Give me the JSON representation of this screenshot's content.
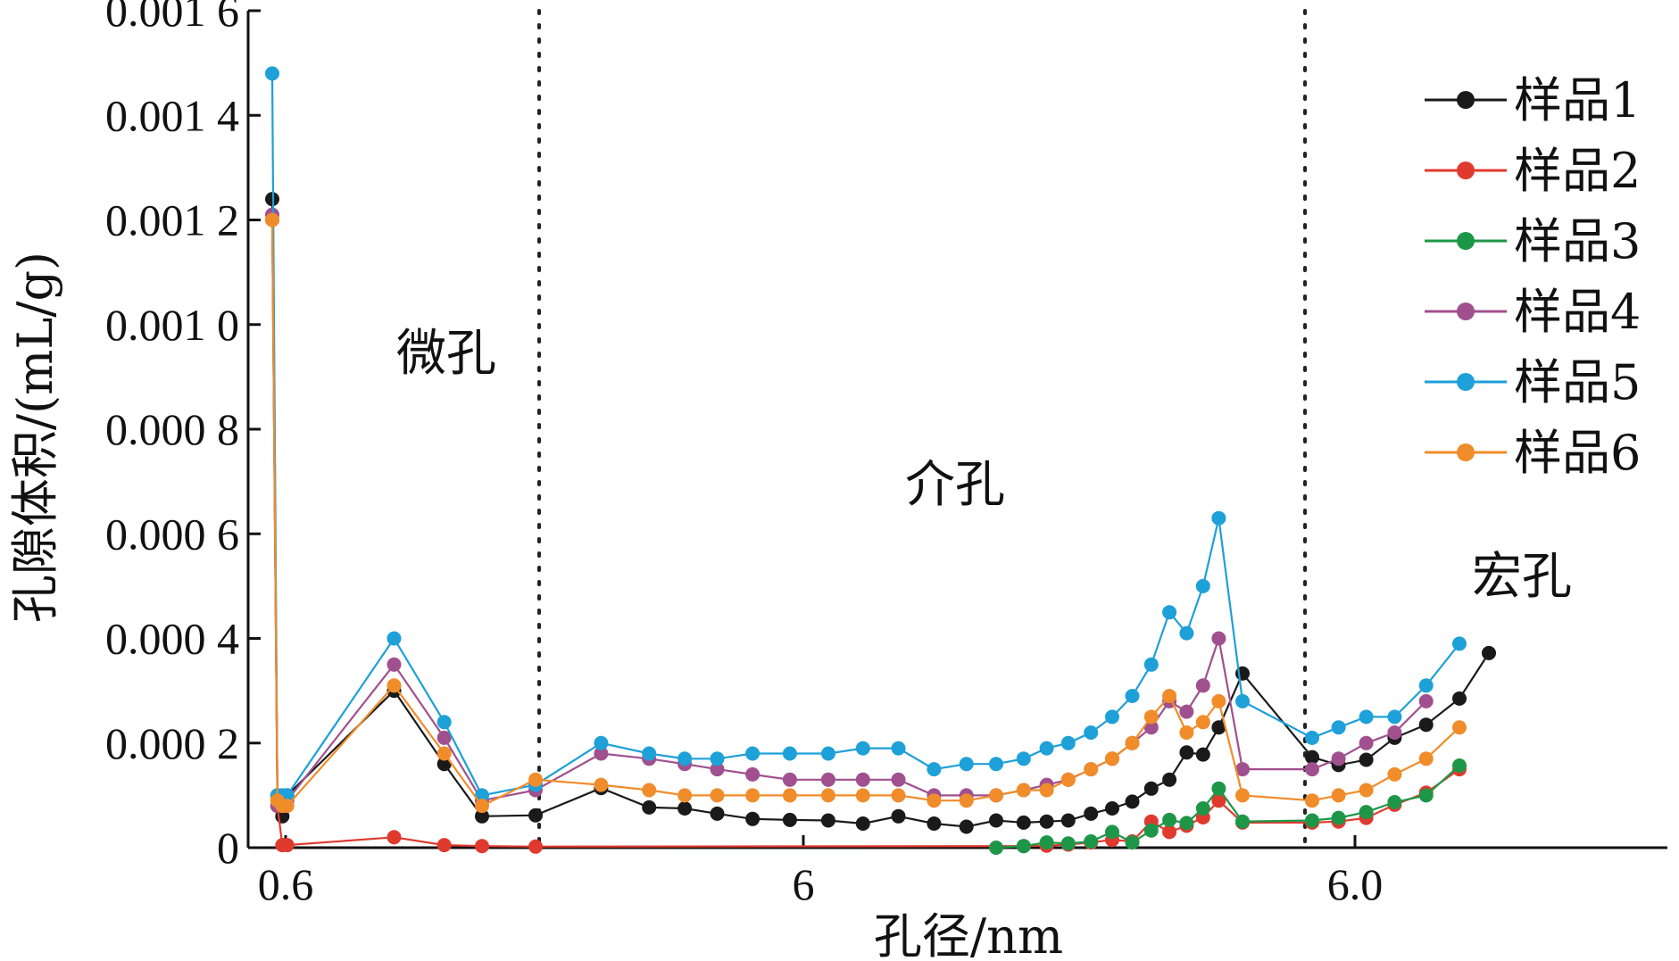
{
  "chart_data": {
    "type": "line",
    "xlabel": "孔径/nm",
    "ylabel": "孔隙体积/(mL/g)",
    "x_tick_labels": [
      "0.6",
      "6",
      "6.0"
    ],
    "y_tick_labels": [
      "0",
      "0.000 2",
      "0.000 4",
      "0.000 6",
      "0.000 8",
      "0.001 0",
      "0.001 2",
      "0.001 4",
      "0.001 6"
    ],
    "ylim": [
      0,
      0.0016
    ],
    "regions": [
      "微孔",
      "介孔",
      "宏孔"
    ],
    "legend_position": "top-right",
    "x": [
      0.59,
      0.61,
      0.63,
      0.65,
      1.3,
      1.8,
      2.3,
      3.5,
      4.2,
      4.8,
      5.3,
      5.8,
      6.4,
      7.1,
      7.9,
      8.7,
      9.6,
      10.6,
      11.6,
      12.6,
      13.6,
      14.5,
      15.4,
      16.4,
      17.4,
      18.4,
      19.4,
      20.4,
      21.4,
      22.4,
      23.4,
      25.0,
      27.5,
      30.5,
      34.0,
      38.0,
      43.0,
      49.0,
      55.0,
      62.0,
      70.0,
      80.0,
      92.0,
      104.0,
      117.0,
      130.0,
      145.0,
      160.0,
      180.0,
      200.0,
      225.0,
      250.0
    ],
    "series": [
      {
        "name": "样品1",
        "color": "#1a1a1a",
        "values": [
          0.00124,
          0.0001,
          6e-05,
          0.0001,
          0.0003,
          0.00016,
          6e-05,
          6.2e-05,
          0.000114,
          7.7e-05,
          7.5e-05,
          6.5e-05,
          5.5e-05,
          5.3e-05,
          5.2e-05,
          4.6e-05,
          6e-05,
          4.6e-05,
          4e-05,
          5.2e-05,
          4.8e-05,
          5e-05,
          5.2e-05,
          6.5e-05,
          7.5e-05,
          8.8e-05,
          0.000113,
          0.00013,
          0.000182,
          0.000178,
          0.00023,
          0.000333,
          0.000173,
          0.000158,
          0.000168,
          0.00021,
          0.000235,
          0.000285,
          0.000372,
          null,
          null,
          null,
          null,
          null,
          null,
          null,
          null,
          null,
          null,
          null,
          null,
          null
        ]
      },
      {
        "name": "样品2",
        "color": "#e03a2f",
        "values": [
          0.0012,
          8e-05,
          5e-06,
          5e-06,
          2e-05,
          5e-06,
          3e-06,
          2e-06,
          null,
          null,
          null,
          null,
          null,
          null,
          null,
          null,
          null,
          null,
          null,
          null,
          3e-06,
          4e-06,
          6e-06,
          1e-05,
          1.5e-05,
          1.2e-05,
          5e-05,
          3e-05,
          4.2e-05,
          5.8e-05,
          9e-05,
          4.8e-05,
          4.8e-05,
          5e-05,
          5.7e-05,
          8.2e-05,
          0.000105,
          0.00015,
          null,
          null,
          null,
          null,
          null,
          null,
          null,
          null,
          null,
          null,
          null,
          null,
          null,
          null
        ]
      },
      {
        "name": "样品3",
        "color": "#1e9648",
        "values": [
          null,
          null,
          null,
          null,
          null,
          null,
          null,
          null,
          null,
          null,
          null,
          null,
          null,
          null,
          null,
          null,
          null,
          null,
          null,
          0.0,
          3e-06,
          1e-05,
          8e-06,
          1.2e-05,
          3e-05,
          1e-05,
          3.3e-05,
          5.3e-05,
          4.7e-05,
          7.5e-05,
          0.000113,
          5e-05,
          5.2e-05,
          5.7e-05,
          6.8e-05,
          8.7e-05,
          0.0001,
          0.000157,
          null,
          null,
          null,
          null,
          null,
          null,
          null,
          null,
          null,
          null,
          null,
          null,
          null,
          null
        ]
      },
      {
        "name": "样品4",
        "color": "#a0508f",
        "values": [
          0.00121,
          8e-05,
          8e-05,
          9e-05,
          0.00035,
          0.00021,
          9e-05,
          0.00011,
          0.00018,
          0.00017,
          0.00016,
          0.00015,
          0.00014,
          0.00013,
          0.00013,
          0.00013,
          0.00013,
          0.0001,
          0.0001,
          0.0001,
          0.00011,
          0.00012,
          0.00013,
          0.00015,
          0.00017,
          0.0002,
          0.00023,
          0.00028,
          0.00026,
          0.00031,
          0.0004,
          0.00015,
          0.00015,
          0.00017,
          0.0002,
          0.00022,
          0.00028,
          null,
          null,
          null,
          null,
          null,
          null,
          null,
          null,
          null,
          null,
          null,
          null,
          null,
          null,
          null
        ]
      },
      {
        "name": "样品5",
        "color": "#1ea0d8",
        "values": [
          0.00148,
          0.0001,
          0.0001,
          0.0001,
          0.0004,
          0.00024,
          0.0001,
          0.00012,
          0.0002,
          0.00018,
          0.00017,
          0.00017,
          0.00018,
          0.00018,
          0.00018,
          0.00019,
          0.00019,
          0.00015,
          0.00016,
          0.00016,
          0.00017,
          0.00019,
          0.0002,
          0.00022,
          0.00025,
          0.00029,
          0.00035,
          0.00045,
          0.00041,
          0.0005,
          0.00063,
          0.00028,
          0.00021,
          0.00023,
          0.00025,
          0.00025,
          0.00031,
          0.00039,
          null,
          null,
          null,
          null,
          null,
          null,
          null,
          null,
          null,
          null,
          null,
          null,
          null,
          null
        ]
      },
      {
        "name": "样品6",
        "color": "#f08c2a",
        "values": [
          0.0012,
          9e-05,
          8e-05,
          8e-05,
          0.00031,
          0.00018,
          8e-05,
          0.00013,
          0.00012,
          0.00011,
          0.0001,
          0.0001,
          0.0001,
          0.0001,
          0.0001,
          0.0001,
          0.0001,
          9e-05,
          9e-05,
          0.0001,
          0.00011,
          0.00011,
          0.00013,
          0.00015,
          0.00017,
          0.0002,
          0.00025,
          0.00029,
          0.00022,
          0.00024,
          0.00028,
          0.0001,
          9e-05,
          0.0001,
          0.00011,
          0.00014,
          0.00017,
          0.00023,
          null,
          null,
          null,
          null,
          null,
          null,
          null,
          null,
          null,
          null,
          null,
          null,
          null,
          null
        ]
      }
    ]
  }
}
